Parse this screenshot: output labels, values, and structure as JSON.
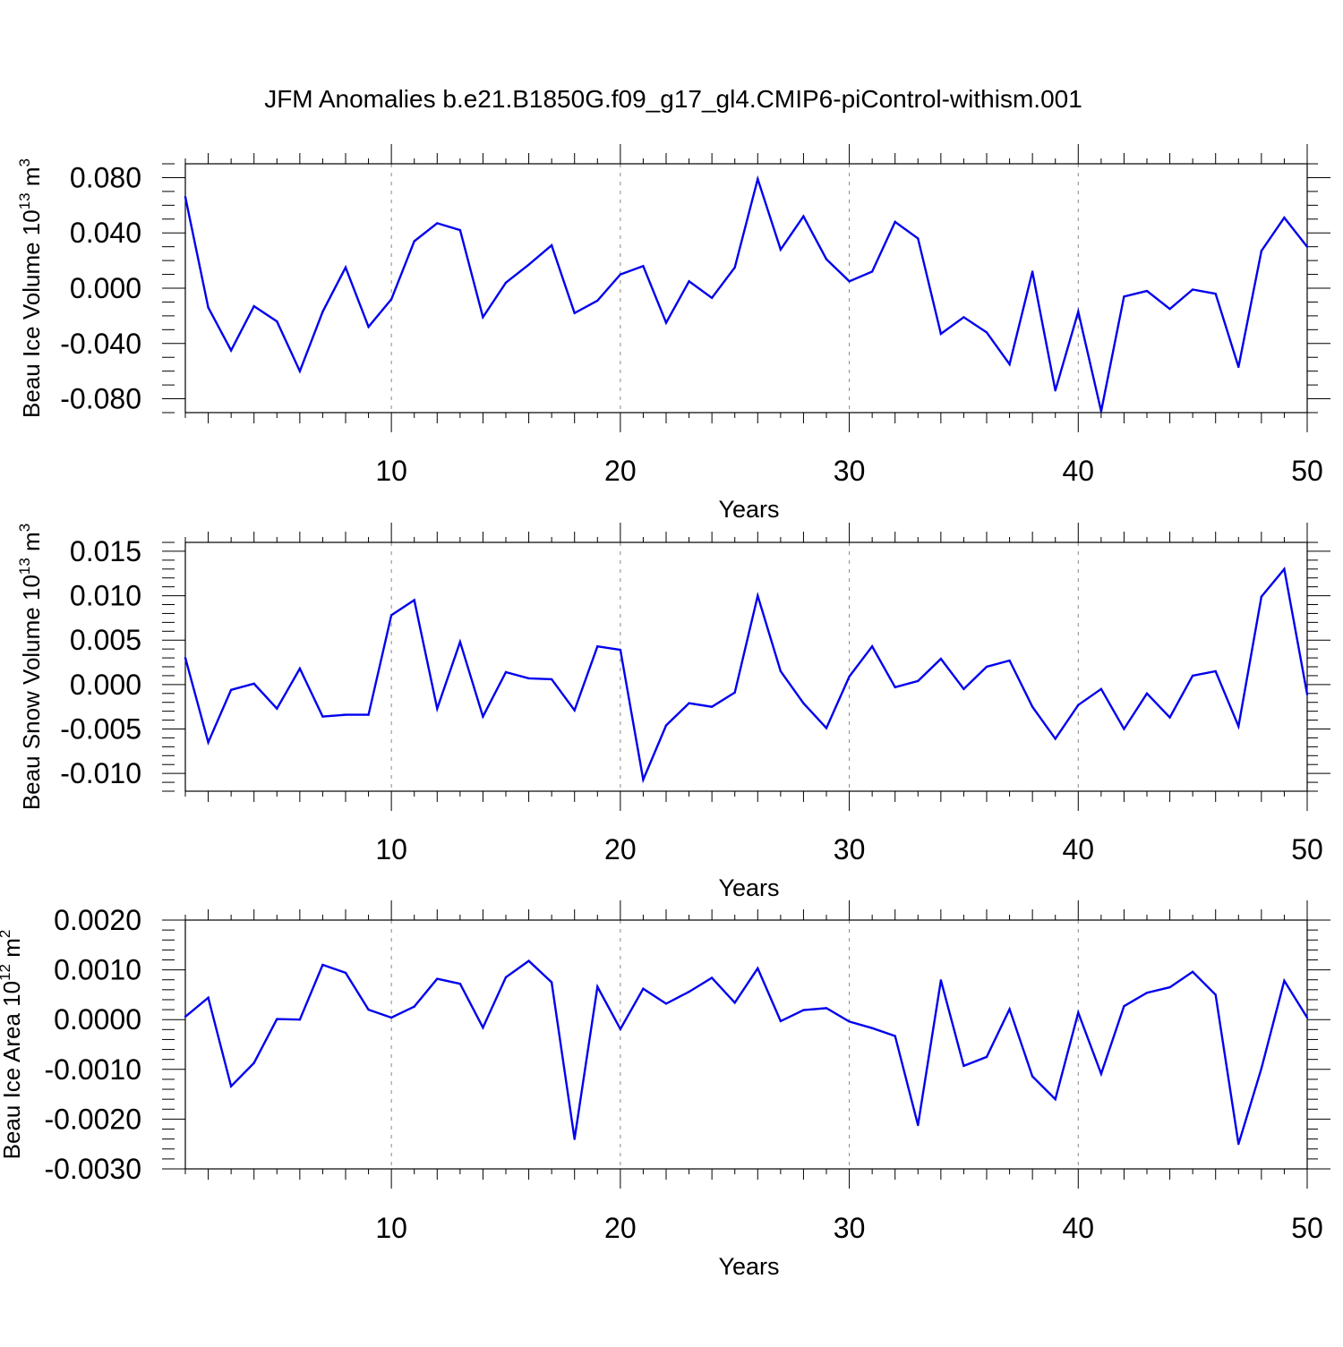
{
  "title": "JFM Anomalies b.e21.B1850G.f09_g17_gl4.CMIP6-piControl-withism.001",
  "colors": {
    "line": "#0000ee",
    "frame": "#000000",
    "grid": "#888888",
    "background": "#ffffff"
  },
  "chart_data": [
    {
      "type": "line",
      "ylabel": {
        "text": "Beau Ice Volume 10",
        "exp": "13",
        "unit": " m",
        "unit_exp": "3"
      },
      "xlabel": "Years",
      "xlim": [
        1,
        50
      ],
      "ylim": [
        -0.09,
        0.09
      ],
      "x_ticks": [
        10,
        20,
        30,
        40,
        50
      ],
      "x_tick_labels": [
        "10",
        "20",
        "30",
        "40",
        "50"
      ],
      "y_ticks": [
        -0.08,
        -0.04,
        0.0,
        0.04,
        0.08
      ],
      "y_tick_labels": [
        "-0.080",
        "-0.040",
        "0.000",
        "0.040",
        "0.080"
      ],
      "y_minor_step": 0.01,
      "grid": "vertical-dashed",
      "series": [
        {
          "name": "Beau Ice Volume",
          "x": [
            1,
            2,
            3,
            4,
            5,
            6,
            7,
            8,
            9,
            10,
            11,
            12,
            13,
            14,
            15,
            16,
            17,
            18,
            19,
            20,
            21,
            22,
            23,
            24,
            25,
            26,
            27,
            28,
            29,
            30,
            31,
            32,
            33,
            34,
            35,
            36,
            37,
            38,
            39,
            40,
            41,
            42,
            43,
            44,
            45,
            46,
            47,
            48,
            49,
            50
          ],
          "values": [
            0.066,
            -0.014,
            -0.045,
            -0.013,
            -0.024,
            -0.06,
            -0.017,
            0.015,
            -0.028,
            -0.008,
            0.034,
            0.047,
            0.042,
            -0.021,
            0.004,
            0.017,
            0.031,
            -0.018,
            -0.009,
            0.01,
            0.016,
            -0.025,
            0.005,
            -0.007,
            0.015,
            0.079,
            0.028,
            0.052,
            0.021,
            0.005,
            0.012,
            0.048,
            0.036,
            -0.033,
            -0.021,
            -0.032,
            -0.055,
            0.012,
            -0.074,
            -0.017,
            -0.089,
            -0.006,
            -0.002,
            -0.015,
            -0.001,
            -0.004,
            -0.057,
            0.027,
            0.051,
            0.03
          ]
        }
      ]
    },
    {
      "type": "line",
      "ylabel": {
        "text": "Beau Snow Volume 10",
        "exp": "13",
        "unit": " m",
        "unit_exp": "3"
      },
      "xlabel": "Years",
      "xlim": [
        1,
        50
      ],
      "ylim": [
        -0.012,
        0.016
      ],
      "x_ticks": [
        10,
        20,
        30,
        40,
        50
      ],
      "x_tick_labels": [
        "10",
        "20",
        "30",
        "40",
        "50"
      ],
      "y_ticks": [
        -0.01,
        -0.005,
        0.0,
        0.005,
        0.01,
        0.015
      ],
      "y_tick_labels": [
        "-0.010",
        "-0.005",
        "0.000",
        "0.005",
        "0.010",
        "0.015"
      ],
      "y_minor_step": 0.001,
      "grid": "vertical-dashed",
      "series": [
        {
          "name": "Beau Snow Volume",
          "x": [
            1,
            2,
            3,
            4,
            5,
            6,
            7,
            8,
            9,
            10,
            11,
            12,
            13,
            14,
            15,
            16,
            17,
            18,
            19,
            20,
            21,
            22,
            23,
            24,
            25,
            26,
            27,
            28,
            29,
            30,
            31,
            32,
            33,
            34,
            35,
            36,
            37,
            38,
            39,
            40,
            41,
            42,
            43,
            44,
            45,
            46,
            47,
            48,
            49,
            50
          ],
          "values": [
            0.003,
            -0.0065,
            -0.0006,
            0.0001,
            -0.0027,
            0.0018,
            -0.0036,
            -0.0034,
            -0.0034,
            0.0078,
            0.0095,
            -0.0027,
            0.0048,
            -0.0036,
            0.0014,
            0.0007,
            0.0006,
            -0.0029,
            0.0043,
            0.0039,
            -0.0107,
            -0.0046,
            -0.0021,
            -0.0025,
            -0.0009,
            0.01,
            0.0015,
            -0.0021,
            -0.0049,
            0.0009,
            0.0043,
            -0.0003,
            0.0004,
            0.0029,
            -0.0005,
            0.002,
            0.0027,
            -0.0025,
            -0.0061,
            -0.0023,
            -0.0005,
            -0.005,
            -0.001,
            -0.0037,
            0.001,
            0.0015,
            -0.0047,
            0.0099,
            0.013,
            -0.0011
          ]
        }
      ]
    },
    {
      "type": "line",
      "ylabel": {
        "text": "Beau Ice Area 10",
        "exp": "12",
        "unit": " m",
        "unit_exp": "2"
      },
      "xlabel": "Years",
      "xlim": [
        1,
        50
      ],
      "ylim": [
        -0.003,
        0.002
      ],
      "x_ticks": [
        10,
        20,
        30,
        40,
        50
      ],
      "x_tick_labels": [
        "10",
        "20",
        "30",
        "40",
        "50"
      ],
      "y_ticks": [
        -0.003,
        -0.002,
        -0.001,
        0.0,
        0.001,
        0.002
      ],
      "y_tick_labels": [
        "-0.0030",
        "-0.0020",
        "-0.0010",
        "0.0000",
        "0.0010",
        "0.0020"
      ],
      "y_minor_step": 0.0002,
      "grid": "vertical-dashed",
      "series": [
        {
          "name": "Beau Ice Area",
          "x": [
            1,
            2,
            3,
            4,
            5,
            6,
            7,
            8,
            9,
            10,
            11,
            12,
            13,
            14,
            15,
            16,
            17,
            18,
            19,
            20,
            21,
            22,
            23,
            24,
            25,
            26,
            27,
            28,
            29,
            30,
            31,
            32,
            33,
            34,
            35,
            36,
            37,
            38,
            39,
            40,
            41,
            42,
            43,
            44,
            45,
            46,
            47,
            48,
            49,
            50
          ],
          "values": [
            6e-05,
            0.00044,
            -0.00134,
            -0.00087,
            1e-05,
            0.0,
            0.0011,
            0.00094,
            0.0002,
            4e-05,
            0.00026,
            0.00082,
            0.00072,
            -0.00016,
            0.00085,
            0.00118,
            0.00075,
            -0.0024,
            0.00066,
            -0.00019,
            0.00062,
            0.00032,
            0.00056,
            0.00084,
            0.00034,
            0.00103,
            -3e-05,
            0.00019,
            0.00023,
            -4e-05,
            -0.00017,
            -0.00033,
            -0.00212,
            0.00079,
            -0.00093,
            -0.00075,
            0.00021,
            -0.00114,
            -0.0016,
            0.00014,
            -0.00109,
            0.00027,
            0.00054,
            0.00065,
            0.00096,
            0.0005,
            -0.0025,
            -0.00098,
            0.00078,
            4e-05
          ]
        }
      ]
    }
  ]
}
